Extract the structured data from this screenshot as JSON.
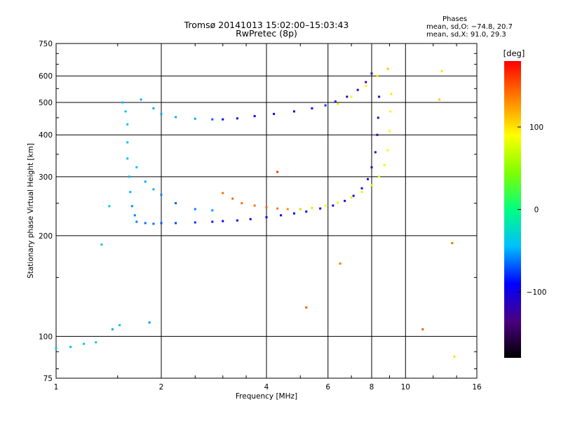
{
  "header": {
    "title_line1": "Tromsø 20141013 15:02:00–15:03:43",
    "title_line2": "RwPretec (8p)",
    "stats_title": "Phases",
    "stats_line1": "mean, sd,O: −74.8, 20.7",
    "stats_line2": "mean, sd,X:  91.0, 29.3"
  },
  "colorbar": {
    "unit_label": "[deg]",
    "tick_labels": [
      "100",
      "0",
      "−100"
    ],
    "tick_values": [
      100,
      0,
      -100
    ],
    "range": [
      -180,
      180
    ],
    "colors": [
      "#000000",
      "#4b0082",
      "#0000ff",
      "#00bfff",
      "#00ff80",
      "#80ff00",
      "#ffff00",
      "#ff8000",
      "#ff0000"
    ]
  },
  "chart_data": {
    "type": "scatter",
    "title": "Tromsø 20141013 15:02:00–15:03:43",
    "subtitle": "RwPretec (8p)",
    "xlabel": "Frequency [MHz]",
    "ylabel": "Stationary phase Virtual Height [km]",
    "xscale": "log",
    "yscale": "log",
    "xlim": [
      1,
      16
    ],
    "ylim": [
      75,
      750
    ],
    "x_ticks": [
      1,
      2,
      4,
      6,
      8,
      10,
      16
    ],
    "y_ticks": [
      75,
      100,
      200,
      300,
      400,
      500,
      600,
      750
    ],
    "grid": true,
    "color_encoding": "Phase [deg]",
    "series": [
      {
        "name": "O",
        "points": [
          [
            1.0,
            92,
            -40
          ],
          [
            1.1,
            93,
            -40
          ],
          [
            1.2,
            95,
            -40
          ],
          [
            1.3,
            96,
            -40
          ],
          [
            1.45,
            105,
            -50
          ],
          [
            1.52,
            108,
            -45
          ],
          [
            1.55,
            500,
            -45
          ],
          [
            1.58,
            470,
            -40
          ],
          [
            1.6,
            430,
            -45
          ],
          [
            1.6,
            380,
            -45
          ],
          [
            1.6,
            340,
            -45
          ],
          [
            1.62,
            300,
            -50
          ],
          [
            1.63,
            270,
            -45
          ],
          [
            1.65,
            245,
            -55
          ],
          [
            1.68,
            230,
            -60
          ],
          [
            1.7,
            220,
            -60
          ],
          [
            1.8,
            218,
            -65
          ],
          [
            1.9,
            217,
            -65
          ],
          [
            2.0,
            218,
            -70
          ],
          [
            2.2,
            218,
            -75
          ],
          [
            2.5,
            219,
            -80
          ],
          [
            2.8,
            220,
            -85
          ],
          [
            3.0,
            221,
            -90
          ],
          [
            3.3,
            222,
            -95
          ],
          [
            3.6,
            224,
            -100
          ],
          [
            4.0,
            227,
            -100
          ],
          [
            4.4,
            230,
            -100
          ],
          [
            4.8,
            233,
            -95
          ],
          [
            5.2,
            236,
            -95
          ],
          [
            5.7,
            241,
            -100
          ],
          [
            6.2,
            246,
            -100
          ],
          [
            6.7,
            254,
            -105
          ],
          [
            7.1,
            263,
            -105
          ],
          [
            7.5,
            277,
            -110
          ],
          [
            7.8,
            295,
            -115
          ],
          [
            8.0,
            320,
            -115
          ],
          [
            8.2,
            355,
            -120
          ],
          [
            8.3,
            400,
            -120
          ],
          [
            8.35,
            450,
            -120
          ],
          [
            8.4,
            520,
            -115
          ],
          [
            1.75,
            510,
            -50
          ],
          [
            1.9,
            480,
            -50
          ],
          [
            2.0,
            462,
            -50
          ],
          [
            2.2,
            452,
            -50
          ],
          [
            2.5,
            447,
            -50
          ],
          [
            2.8,
            445,
            -70
          ],
          [
            3.0,
            445,
            -90
          ],
          [
            3.3,
            448,
            -100
          ],
          [
            3.7,
            455,
            -100
          ],
          [
            4.2,
            462,
            -100
          ],
          [
            4.8,
            470,
            -100
          ],
          [
            5.4,
            480,
            -90
          ],
          [
            5.9,
            490,
            -80
          ],
          [
            6.3,
            503,
            -100
          ],
          [
            6.8,
            520,
            -110
          ],
          [
            7.3,
            545,
            -115
          ],
          [
            7.7,
            575,
            -120
          ],
          [
            8.0,
            610,
            -130
          ],
          [
            1.7,
            320,
            -45
          ],
          [
            1.8,
            290,
            -50
          ],
          [
            1.9,
            275,
            -50
          ],
          [
            2.0,
            265,
            -60
          ],
          [
            2.2,
            250,
            -70
          ],
          [
            2.5,
            240,
            -60
          ],
          [
            2.8,
            238,
            -55
          ],
          [
            1.85,
            110,
            -55
          ],
          [
            1.35,
            188,
            -40
          ],
          [
            1.42,
            245,
            -40
          ]
        ]
      },
      {
        "name": "X",
        "points": [
          [
            3.0,
            268,
            140
          ],
          [
            3.2,
            258,
            145
          ],
          [
            3.4,
            250,
            140
          ],
          [
            3.7,
            246,
            140
          ],
          [
            4.0,
            243,
            145
          ],
          [
            4.3,
            241,
            140
          ],
          [
            4.6,
            240,
            130
          ],
          [
            5.0,
            240,
            110
          ],
          [
            5.4,
            242,
            100
          ],
          [
            5.9,
            246,
            90
          ],
          [
            6.4,
            251,
            80
          ],
          [
            7.0,
            260,
            80
          ],
          [
            7.5,
            270,
            75
          ],
          [
            8.0,
            283,
            75
          ],
          [
            8.4,
            300,
            80
          ],
          [
            8.7,
            325,
            80
          ],
          [
            8.9,
            360,
            85
          ],
          [
            9.0,
            410,
            90
          ],
          [
            9.05,
            470,
            95
          ],
          [
            9.1,
            530,
            100
          ],
          [
            6.4,
            495,
            80
          ],
          [
            7.0,
            520,
            85
          ],
          [
            7.7,
            560,
            90
          ],
          [
            8.3,
            600,
            100
          ],
          [
            8.9,
            630,
            110
          ],
          [
            12.5,
            510,
            110
          ],
          [
            12.7,
            620,
            100
          ],
          [
            4.3,
            310,
            160
          ],
          [
            6.5,
            165,
            140
          ],
          [
            5.2,
            122,
            150
          ],
          [
            11.2,
            105,
            150
          ],
          [
            13.6,
            190,
            140
          ],
          [
            13.8,
            87,
            100
          ]
        ]
      }
    ]
  }
}
